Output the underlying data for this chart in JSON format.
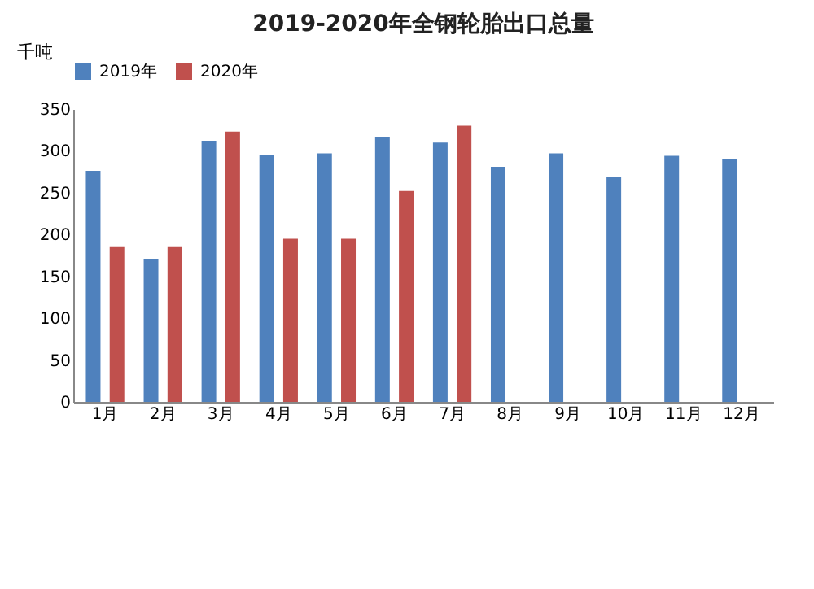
{
  "chart_data": {
    "type": "bar",
    "title": "2019-2020年全钢轮胎出口总量",
    "ylabel": "千吨",
    "categories": [
      "1月",
      "2月",
      "3月",
      "4月",
      "5月",
      "6月",
      "7月",
      "8月",
      "9月",
      "10月",
      "11月",
      "12月"
    ],
    "series": [
      {
        "name": "2019年",
        "color": "#4f81bd",
        "values": [
          276,
          171,
          312,
          295,
          297,
          316,
          310,
          281,
          297,
          269,
          294,
          290
        ]
      },
      {
        "name": "2020年",
        "color": "#c0504d",
        "values": [
          186,
          186,
          323,
          195,
          195,
          252,
          330,
          null,
          null,
          null,
          null,
          null
        ]
      }
    ],
    "ylim": [
      0,
      350
    ],
    "yticks": [
      0,
      50,
      100,
      150,
      200,
      250,
      300,
      350
    ],
    "grid": false,
    "legend": "top"
  }
}
